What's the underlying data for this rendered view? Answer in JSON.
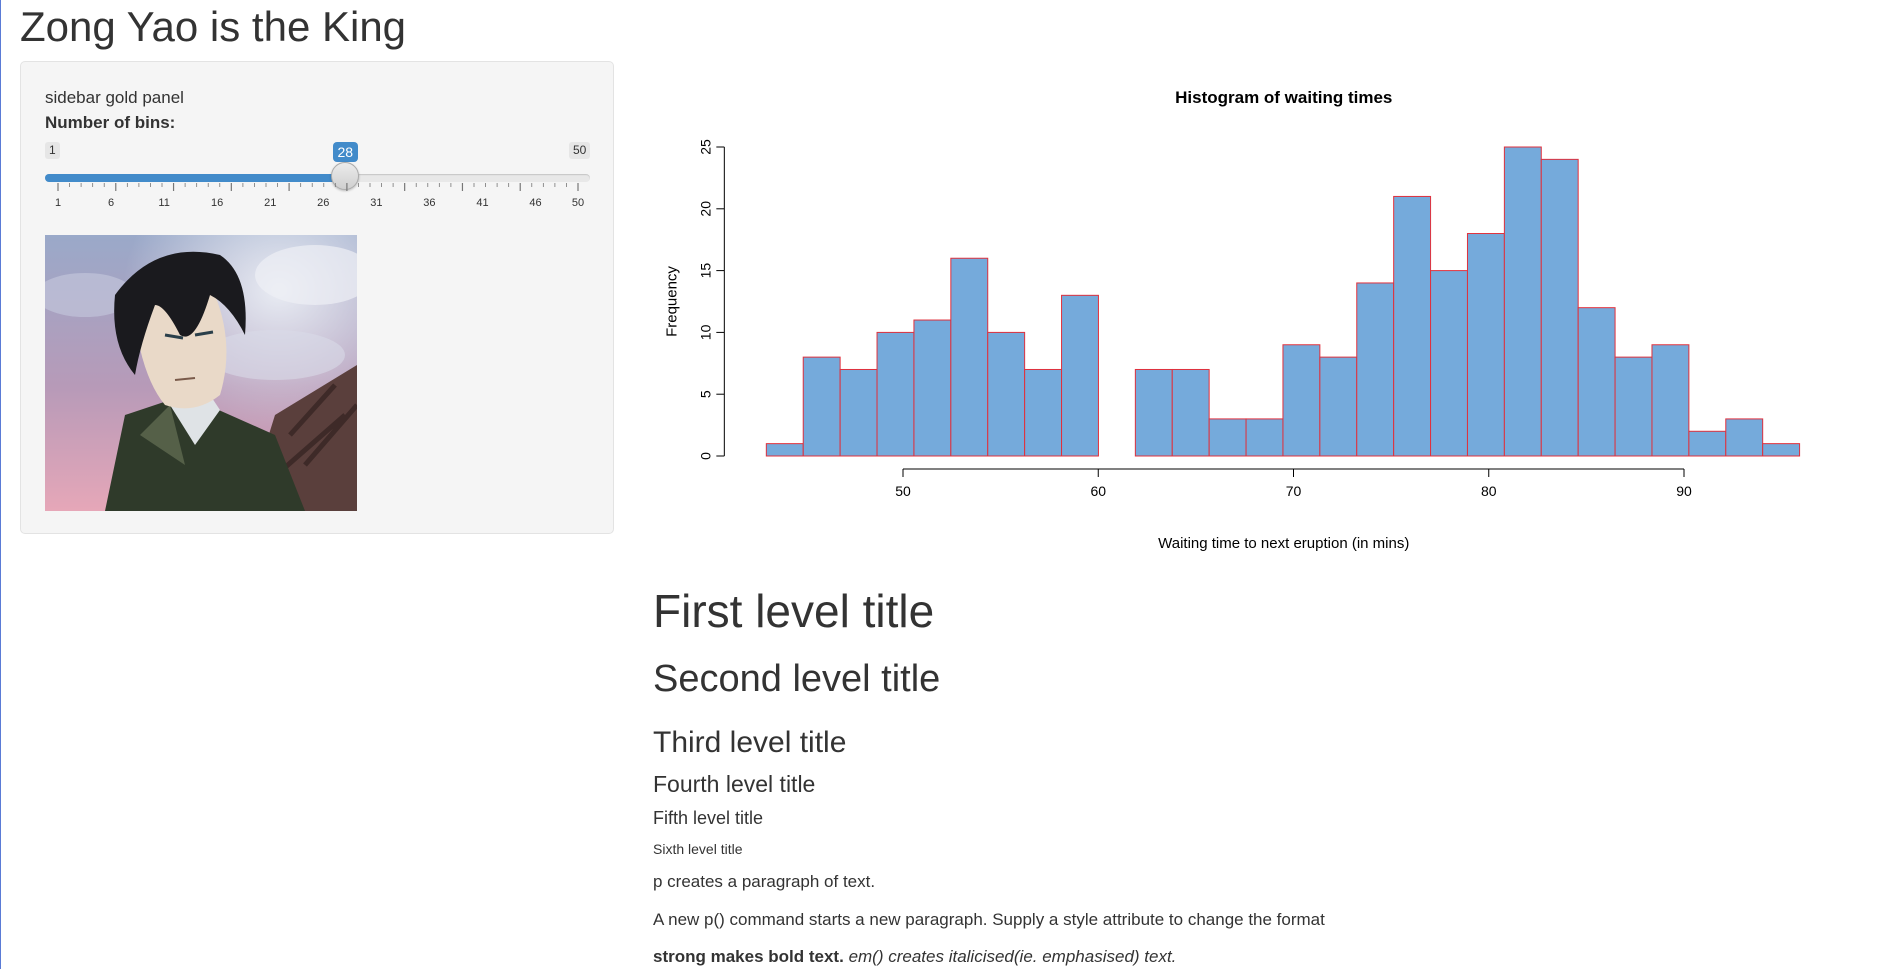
{
  "page": {
    "title": "Zong Yao is the King"
  },
  "sidebar": {
    "text": "sidebar gold panel",
    "slider": {
      "label": "Number of bins:",
      "min": 1,
      "max": 50,
      "value": 28,
      "min_label": "1",
      "max_label": "50",
      "value_label": "28",
      "tick_labels": [
        "1",
        "6",
        "11",
        "16",
        "21",
        "26",
        "31",
        "36",
        "41",
        "46",
        "50"
      ],
      "accent": "#428bca"
    },
    "image": {
      "icon": "anime-character-portrait"
    }
  },
  "chart_data": {
    "type": "bar",
    "title": "Histogram of waiting times",
    "xlabel": "Waiting time to next eruption (in mins)",
    "ylabel": "Frequency",
    "bin_start": 43,
    "bin_width": 1.89,
    "values": [
      1,
      8,
      7,
      10,
      11,
      16,
      10,
      7,
      13,
      0,
      7,
      7,
      3,
      3,
      9,
      8,
      14,
      21,
      15,
      18,
      25,
      24,
      12,
      8,
      9,
      2,
      3,
      1
    ],
    "xlim": [
      43,
      96
    ],
    "ylim": [
      0,
      25
    ],
    "x_ticks": [
      50,
      60,
      70,
      80,
      90
    ],
    "y_ticks": [
      0,
      5,
      10,
      15,
      20,
      25
    ],
    "bar_fill": "#75aadb",
    "bar_border": "#e0303c",
    "grid": false
  },
  "content": {
    "h1": "First level title",
    "h2": "Second level title",
    "h3": "Third level title",
    "h4": "Fourth level title",
    "h5": "Fifth level title",
    "h6": "Sixth level title",
    "p1": "p creates a paragraph of text.",
    "p2": "A new p() command starts a new paragraph. Supply a style attribute to change the format",
    "p3_strong": "strong makes bold text.",
    "p3_em": "em() creates italicised(ie. emphasised) text."
  }
}
